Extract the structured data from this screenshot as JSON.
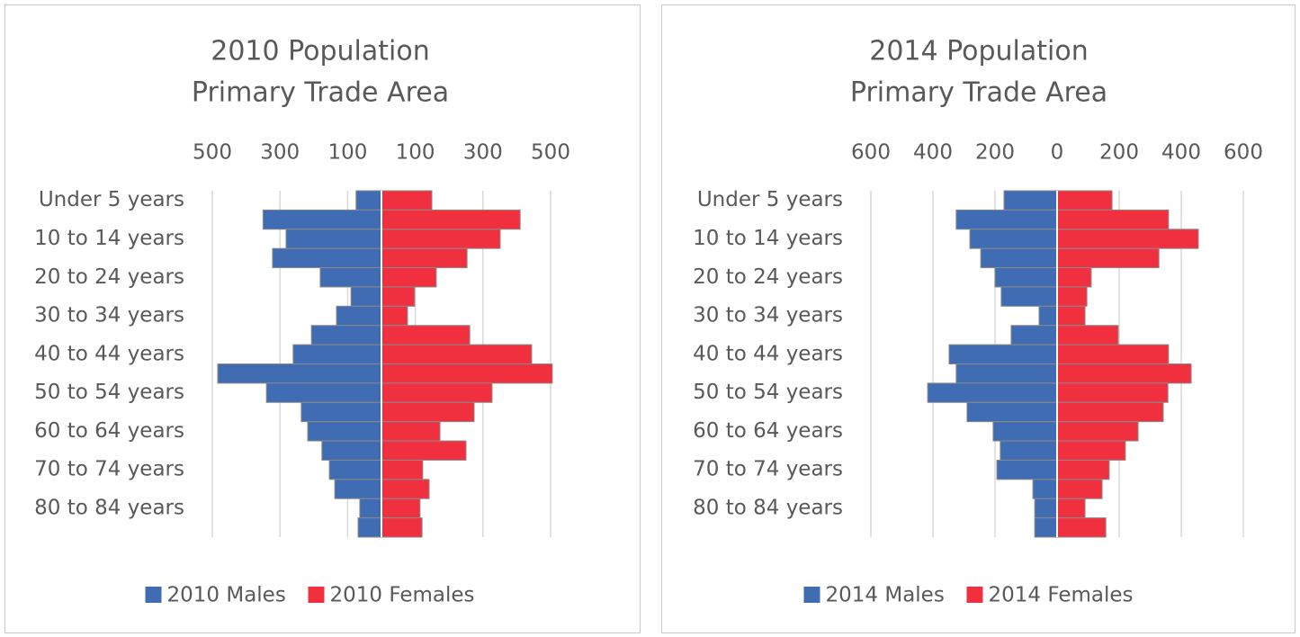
{
  "chart_data": [
    {
      "type": "bar",
      "orientation": "horizontal",
      "title": "2010 Population",
      "subtitle": "Primary Trade Area",
      "categories": [
        "Under 5 years",
        null,
        "10 to 14 years",
        null,
        "20 to 24 years",
        null,
        "30 to 34 years",
        null,
        "40 to 44 years",
        null,
        "50 to 54 years",
        null,
        "60 to 64 years",
        null,
        "70 to 74 years",
        null,
        "80 to 84 years",
        null
      ],
      "series": [
        {
          "name": "2010 Males",
          "color": "#3f6cb2",
          "values": [
            -75,
            -350,
            -282,
            -322,
            -181,
            -90,
            -133,
            -207,
            -261,
            -484,
            -340,
            -237,
            -218,
            -176,
            -154,
            -138,
            -64,
            -69
          ]
        },
        {
          "name": "2010 Females",
          "color": "#f0303f",
          "values": [
            149,
            410,
            351,
            253,
            162,
            98,
            77,
            261,
            444,
            505,
            327,
            274,
            173,
            250,
            122,
            141,
            114,
            120
          ]
        }
      ],
      "xlim": [
        -500,
        500
      ],
      "xticks": [
        {
          "value": -500,
          "label": "500"
        },
        {
          "value": -300,
          "label": "300"
        },
        {
          "value": -100,
          "label": "100"
        },
        100,
        300,
        500
      ],
      "grid": true,
      "legend": "bottom"
    },
    {
      "type": "bar",
      "orientation": "horizontal",
      "title": "2014 Population",
      "subtitle": "Primary Trade Area",
      "categories": [
        "Under 5 years",
        null,
        "10 to 14 years",
        null,
        "20 to 24 years",
        null,
        "30 to 34 years",
        null,
        "40 to 44 years",
        null,
        "50 to 54 years",
        null,
        "60 to 64 years",
        null,
        "70 to 74 years",
        null,
        "80 to 84 years",
        null
      ],
      "series": [
        {
          "name": "2014 Males",
          "color": "#3f6cb2",
          "values": [
            -171,
            -325,
            -281,
            -246,
            -200,
            -180,
            -58,
            -148,
            -348,
            -325,
            -417,
            -290,
            -206,
            -183,
            -194,
            -78,
            -72,
            -72
          ]
        },
        {
          "name": "2014 Females",
          "color": "#f0303f",
          "values": [
            177,
            359,
            455,
            328,
            110,
            96,
            90,
            197,
            359,
            432,
            357,
            342,
            261,
            220,
            168,
            145,
            90,
            157
          ]
        }
      ],
      "xlim": [
        -600,
        600
      ],
      "xticks": [
        {
          "value": -600,
          "label": "600"
        },
        {
          "value": -400,
          "label": "400"
        },
        {
          "value": -200,
          "label": "200"
        },
        0,
        200,
        400,
        600
      ],
      "grid": true,
      "legend": "bottom"
    }
  ]
}
